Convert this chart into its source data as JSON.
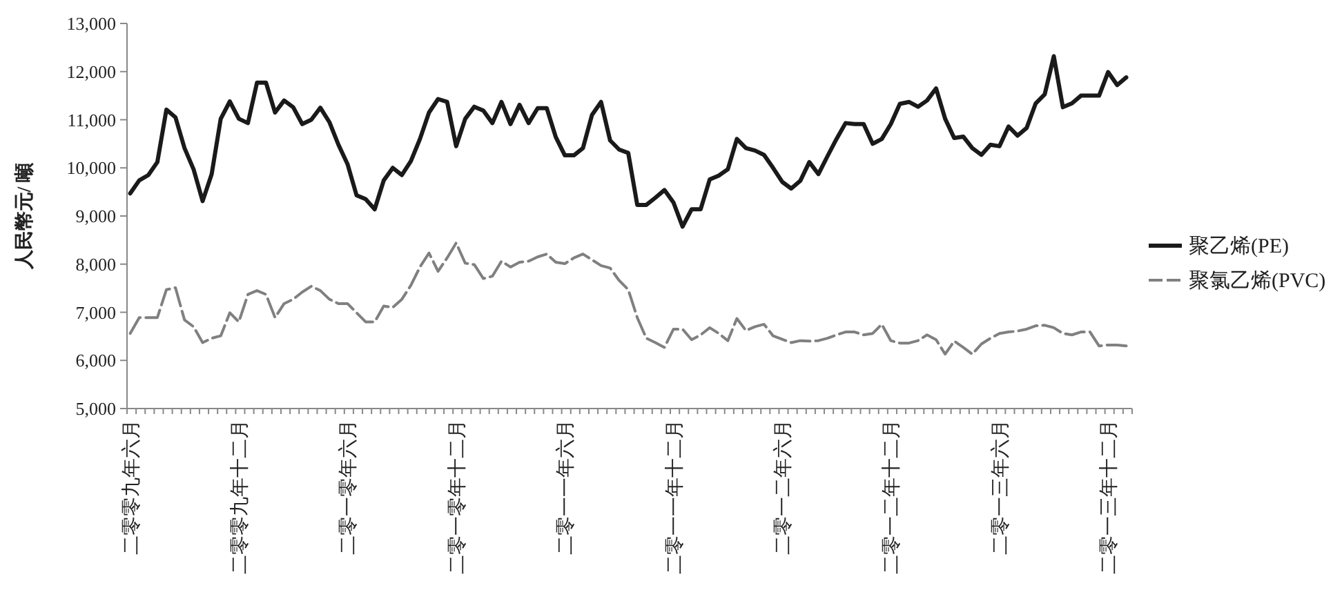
{
  "chart_data": {
    "type": "line",
    "ylabel": "人民幣元/ 噸",
    "categories": [
      "二零零九年六月",
      null,
      null,
      null,
      null,
      null,
      null,
      null,
      null,
      null,
      null,
      null,
      "二零零九年十二月",
      null,
      null,
      null,
      null,
      null,
      null,
      null,
      null,
      null,
      null,
      null,
      "二零一零年六月",
      null,
      null,
      null,
      null,
      null,
      null,
      null,
      null,
      null,
      null,
      null,
      "二零一零年十二月",
      null,
      null,
      null,
      null,
      null,
      null,
      null,
      null,
      null,
      null,
      null,
      "二零一一年六月",
      null,
      null,
      null,
      null,
      null,
      null,
      null,
      null,
      null,
      null,
      null,
      "二零一一年十二月",
      null,
      null,
      null,
      null,
      null,
      null,
      null,
      null,
      null,
      null,
      null,
      "二零一二年六月",
      null,
      null,
      null,
      null,
      null,
      null,
      null,
      null,
      null,
      null,
      null,
      "二零一二年十二月",
      null,
      null,
      null,
      null,
      null,
      null,
      null,
      null,
      null,
      null,
      null,
      "二零一三年六月",
      null,
      null,
      null,
      null,
      null,
      null,
      null,
      null,
      null,
      null,
      null,
      "二零一三年十二月",
      null,
      null
    ],
    "series": [
      {
        "name": "聚乙烯(PE)",
        "color": "#1a1a1a",
        "line_style": "solid",
        "values": [
          9470,
          9740,
          9850,
          10120,
          11210,
          11050,
          10410,
          9970,
          9310,
          9870,
          11020,
          11380,
          11020,
          10930,
          11770,
          11770,
          11150,
          11400,
          11260,
          10910,
          11000,
          11250,
          10950,
          10480,
          10080,
          9430,
          9350,
          9140,
          9740,
          10000,
          9850,
          10140,
          10600,
          11150,
          11430,
          11370,
          10450,
          11020,
          11270,
          11190,
          10930,
          11370,
          10910,
          11310,
          10930,
          11240,
          11240,
          10640,
          10260,
          10260,
          10410,
          11100,
          11370,
          10570,
          10380,
          10310,
          9230,
          9230,
          9380,
          9540,
          9280,
          8780,
          9140,
          9140,
          9760,
          9840,
          9970,
          10600,
          10410,
          10360,
          10270,
          10000,
          9710,
          9570,
          9730,
          10120,
          9870,
          10240,
          10600,
          10930,
          10910,
          10910,
          10500,
          10600,
          10910,
          11330,
          11370,
          11270,
          11400,
          11650,
          11020,
          10620,
          10650,
          10410,
          10270,
          10480,
          10450,
          10860,
          10670,
          10830,
          11340,
          11530,
          12320,
          11260,
          11340,
          11500,
          11500,
          11500,
          11990,
          11720,
          11880
        ]
      },
      {
        "name": "聚氯乙烯(PVC)",
        "color": "#808080",
        "line_style": "dashed",
        "values": [
          6560,
          6890,
          6890,
          6890,
          7470,
          7510,
          6840,
          6700,
          6370,
          6460,
          6510,
          6990,
          6800,
          7370,
          7450,
          7370,
          6890,
          7180,
          7270,
          7420,
          7540,
          7450,
          7270,
          7180,
          7180,
          6990,
          6800,
          6800,
          7130,
          7100,
          7270,
          7560,
          7940,
          8230,
          7850,
          8130,
          8440,
          8020,
          7990,
          7700,
          7750,
          8060,
          7940,
          8040,
          8060,
          8150,
          8210,
          8040,
          8010,
          8130,
          8210,
          8090,
          7970,
          7920,
          7660,
          7470,
          6890,
          6460,
          6370,
          6270,
          6650,
          6650,
          6430,
          6530,
          6680,
          6560,
          6410,
          6870,
          6620,
          6700,
          6750,
          6510,
          6440,
          6370,
          6410,
          6400,
          6410,
          6460,
          6530,
          6590,
          6590,
          6530,
          6560,
          6750,
          6410,
          6360,
          6360,
          6410,
          6530,
          6430,
          6130,
          6400,
          6270,
          6130,
          6340,
          6460,
          6560,
          6590,
          6610,
          6650,
          6720,
          6730,
          6680,
          6560,
          6530,
          6590,
          6590,
          6300,
          6320,
          6320,
          6300
        ]
      }
    ],
    "ylim": [
      5000,
      13000
    ],
    "yticks": [
      {
        "value": 5000,
        "label": "5,000"
      },
      {
        "value": 6000,
        "label": "6,000"
      },
      {
        "value": 7000,
        "label": "7,000"
      },
      {
        "value": 8000,
        "label": "8,000"
      },
      {
        "value": 9000,
        "label": "9,000"
      },
      {
        "value": 10000,
        "label": "10,000"
      },
      {
        "value": 11000,
        "label": "11,000"
      },
      {
        "value": 12000,
        "label": "12,000"
      },
      {
        "value": 13000,
        "label": "13,000"
      }
    ],
    "legend": "right",
    "marker": "none",
    "grid": false
  }
}
